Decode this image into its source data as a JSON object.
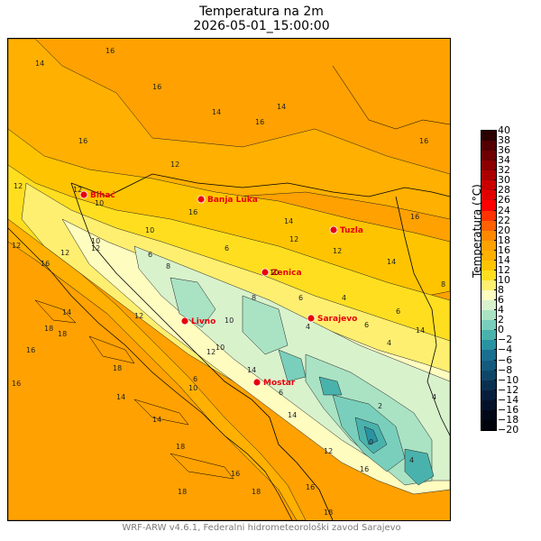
{
  "title": "Temperatura na 2m",
  "subtitle": "2026-05-01_15:00:00",
  "footer": "WRF-ARW v4.6.1, Federalni hidrometeorološki zavod Sarajevo",
  "colorbar": {
    "label": "Temperatura (°C)",
    "ticks": [
      "40",
      "38",
      "36",
      "34",
      "32",
      "30",
      "28",
      "26",
      "24",
      "22",
      "20",
      "18",
      "16",
      "14",
      "12",
      "10",
      "8",
      "6",
      "4",
      "2",
      "0",
      "−2",
      "−4",
      "−6",
      "−8",
      "−10",
      "−12",
      "−14",
      "−16",
      "−18",
      "−20"
    ],
    "colors_top_to_bottom": [
      "#2a0000",
      "#520000",
      "#6e0000",
      "#8c0000",
      "#aa0000",
      "#c80000",
      "#e10000",
      "#ff0000",
      "#ff3300",
      "#ff6000",
      "#ff8800",
      "#ffa100",
      "#ffb000",
      "#ffc400",
      "#ffde20",
      "#ffef70",
      "#fffcc0",
      "#d8f2cc",
      "#a9e3c4",
      "#79cfbb",
      "#4ab2ac",
      "#2a93a2",
      "#1a6e8f",
      "#145a7c",
      "#0f4667",
      "#0a3050",
      "#061e3c",
      "#03122a",
      "#020818",
      "#00030c"
    ]
  },
  "cities": [
    {
      "name": "Bihać"
    },
    {
      "name": "Banja Luka"
    },
    {
      "name": "Tuzla"
    },
    {
      "name": "Zenica"
    },
    {
      "name": "Sarajevo"
    },
    {
      "name": "Livno"
    },
    {
      "name": "Mostar"
    }
  ],
  "contour_labels": [
    "14",
    "16",
    "16",
    "14",
    "16",
    "14",
    "16",
    "16",
    "12",
    "12",
    "16",
    "10",
    "12",
    "14",
    "12",
    "12",
    "14",
    "16",
    "10",
    "12",
    "16",
    "12",
    "12",
    "10",
    "6",
    "8",
    "6",
    "10",
    "8",
    "6",
    "4",
    "6",
    "8",
    "12",
    "10",
    "14",
    "12",
    "10",
    "4",
    "6",
    "4",
    "14",
    "12",
    "16",
    "18",
    "18",
    "16",
    "18",
    "14",
    "18",
    "18",
    "16",
    "18",
    "14",
    "16",
    "14",
    "6",
    "6",
    "10",
    "16",
    "18",
    "14",
    "2",
    "4",
    "4",
    "0"
  ],
  "colors": {
    "land_base": "#ffa100",
    "warm_band": "#ffc400",
    "mid_band": "#ffde20",
    "cool_band": "#fffcc0",
    "cold_band": "#a9e3c4",
    "coldest": "#2a93a2",
    "city_dot": "#e8000b"
  }
}
